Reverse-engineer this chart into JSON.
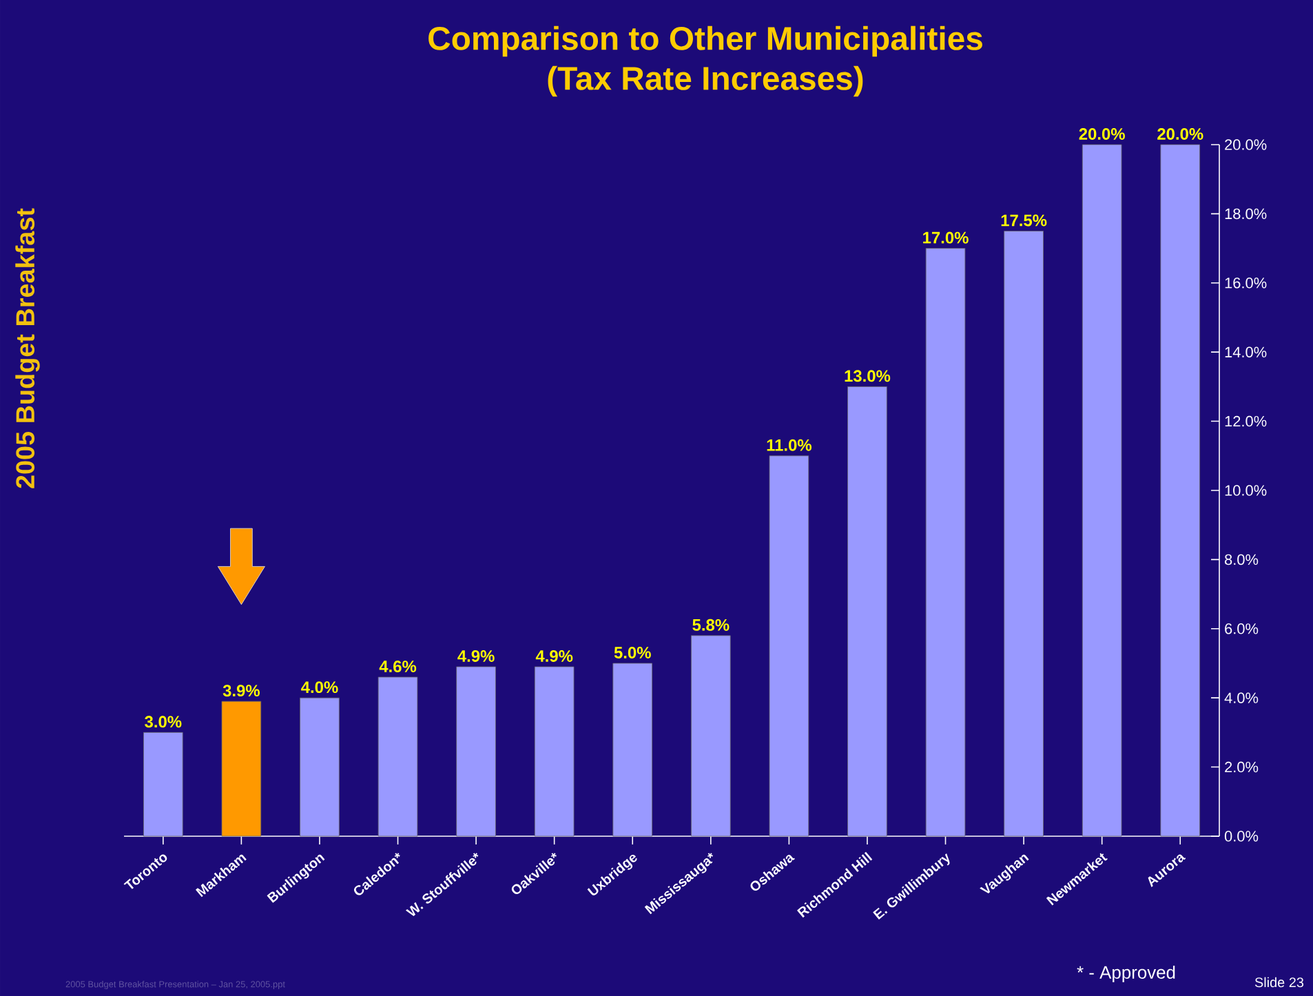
{
  "chart_data": {
    "type": "bar",
    "title": "Comparison to Other Municipalities",
    "subtitle": "(Tax Rate Increases)",
    "categories": [
      "Toronto",
      "Markham",
      "Burlington",
      "Caledon*",
      "W. Stouffville*",
      "Oakville*",
      "Uxbridge",
      "Mississauga*",
      "Oshawa",
      "Richmond Hill",
      "E. Gwillimbury",
      "Vaughan",
      "Newmarket",
      "Aurora"
    ],
    "values": [
      3.0,
      3.9,
      4.0,
      4.6,
      4.9,
      4.9,
      5.0,
      5.8,
      11.0,
      13.0,
      17.0,
      17.5,
      20.0,
      20.0
    ],
    "value_labels": [
      "3.0%",
      "3.9%",
      "4.0%",
      "4.6%",
      "4.9%",
      "4.9%",
      "5.0%",
      "5.8%",
      "11.0%",
      "13.0%",
      "17.0%",
      "17.5%",
      "20.0%",
      "20.0%"
    ],
    "colors": [
      "#9999ff",
      "#ff9900",
      "#9999ff",
      "#9999ff",
      "#9999ff",
      "#9999ff",
      "#9999ff",
      "#9999ff",
      "#9999ff",
      "#9999ff",
      "#9999ff",
      "#9999ff",
      "#9999ff",
      "#9999ff"
    ],
    "ylim": [
      0,
      20
    ],
    "yticks": [
      {
        "value": 0,
        "label": "0.0%"
      },
      {
        "value": 2,
        "label": "2.0%"
      },
      {
        "value": 4,
        "label": "4.0%"
      },
      {
        "value": 6,
        "label": "6.0%"
      },
      {
        "value": 8,
        "label": "8.0%"
      },
      {
        "value": 10,
        "label": "10.0%"
      },
      {
        "value": 12,
        "label": "12.0%"
      },
      {
        "value": 14,
        "label": "14.0%"
      },
      {
        "value": 16,
        "label": "16.0%"
      },
      {
        "value": 18,
        "label": "18.0%"
      },
      {
        "value": 20,
        "label": "20.0%"
      }
    ],
    "grid": false,
    "annotations": [
      "2005 Budget Breakfast",
      "* - Approved",
      "Slide 23",
      "2005 Budget Breakfast Presentation – Jan 25, 2005.ppt"
    ]
  }
}
